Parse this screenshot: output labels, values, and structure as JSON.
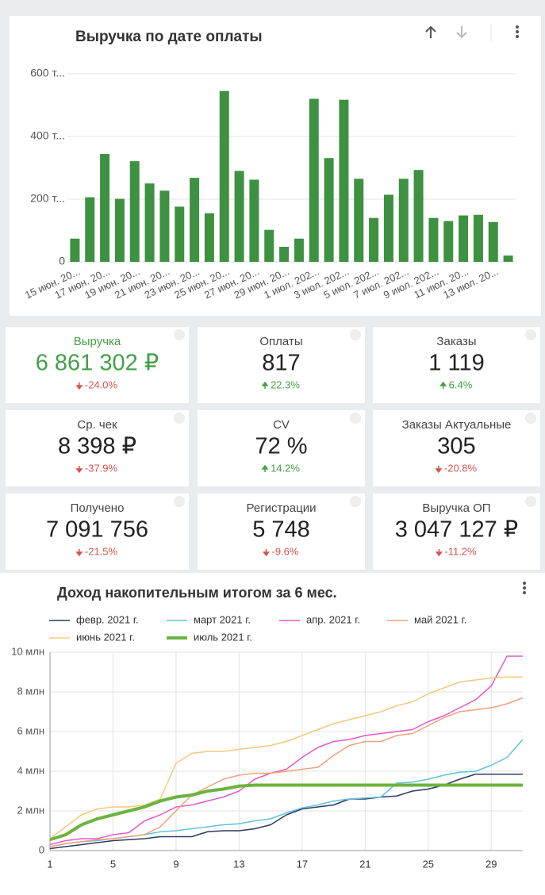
{
  "chart_data": [
    {
      "type": "bar",
      "title": "Выручка по дате оплаты",
      "color": "#3d9140",
      "grid": true,
      "categories": [
        "15 июн. 20...",
        null,
        "17 июн. 20...",
        null,
        "19 июн. 20...",
        null,
        "21 июн. 20...",
        null,
        "23 июн. 20...",
        null,
        "25 июн. 20...",
        null,
        "27 июн. 20...",
        null,
        "29 июн. 20...",
        null,
        "1 июл. 202...",
        null,
        "3 июл. 202...",
        null,
        "5 июл. 202...",
        null,
        "7 июл. 202...",
        null,
        "9 июл. 202...",
        null,
        "11 июл. 20...",
        null,
        "13 июл. 20...",
        null
      ],
      "values": [
        74,
        206,
        344,
        201,
        321,
        250,
        227,
        176,
        268,
        155,
        545,
        290,
        262,
        102,
        48,
        74,
        520,
        331,
        517,
        265,
        140,
        214,
        265,
        293,
        140,
        130,
        148,
        150,
        127,
        20
      ],
      "ylim": [
        0,
        620
      ],
      "yticks": [
        0,
        {
          "value": 200,
          "label": "200 т..."
        },
        {
          "value": 400,
          "label": "400 т..."
        },
        {
          "value": 600,
          "label": "600 т..."
        }
      ]
    },
    {
      "type": "line",
      "title": "Доход накопительным итогом за 6 мес.",
      "grid": true,
      "legend": "top",
      "x": [
        1,
        2,
        3,
        4,
        5,
        6,
        7,
        8,
        9,
        10,
        11,
        12,
        13,
        14,
        15,
        16,
        17,
        18,
        19,
        20,
        21,
        22,
        23,
        24,
        25,
        26,
        27,
        28,
        29,
        30,
        31
      ],
      "xlim": [
        1,
        31
      ],
      "xticks": [
        1,
        5,
        9,
        13,
        17,
        21,
        25,
        29
      ],
      "ylim": [
        0,
        10
      ],
      "yticks": [
        0,
        {
          "value": 2,
          "label": "2 млн"
        },
        {
          "value": 4,
          "label": "4 млн"
        },
        {
          "value": 6,
          "label": "6 млн"
        },
        {
          "value": 8,
          "label": "8 млн"
        },
        {
          "value": 10,
          "label": "10 млн"
        }
      ],
      "series": [
        {
          "name": "февр. 2021 г.",
          "color": "#2d3a63",
          "line_width": 1.5,
          "values": [
            0.1,
            0.2,
            0.3,
            0.4,
            0.5,
            0.55,
            0.6,
            0.7,
            0.7,
            0.7,
            0.95,
            1.0,
            1.0,
            1.1,
            1.3,
            1.8,
            2.1,
            2.2,
            2.3,
            2.6,
            2.6,
            2.7,
            2.75,
            3.0,
            3.1,
            3.3,
            3.6,
            3.85,
            3.85,
            3.85,
            3.85
          ]
        },
        {
          "name": "март 2021 г.",
          "color": "#5fc3dc",
          "line_width": 1.5,
          "values": [
            0.2,
            0.35,
            0.45,
            0.5,
            0.6,
            0.7,
            0.8,
            0.95,
            1.0,
            1.1,
            1.2,
            1.3,
            1.35,
            1.5,
            1.6,
            1.9,
            2.15,
            2.3,
            2.5,
            2.6,
            2.65,
            2.7,
            3.4,
            3.45,
            3.6,
            3.8,
            3.95,
            4.0,
            4.3,
            4.7,
            5.6
          ]
        },
        {
          "name": "апр. 2021 г.",
          "color": "#e25bcb",
          "line_width": 1.5,
          "values": [
            0.3,
            0.5,
            0.6,
            0.6,
            0.8,
            0.9,
            1.5,
            1.8,
            2.2,
            2.3,
            2.5,
            2.7,
            3.0,
            3.6,
            3.9,
            4.1,
            4.7,
            5.2,
            5.5,
            5.6,
            5.8,
            5.9,
            6.0,
            6.1,
            6.5,
            6.8,
            7.2,
            7.6,
            8.3,
            9.8,
            9.8
          ]
        },
        {
          "name": "май 2021 г.",
          "color": "#f0a27a",
          "line_width": 1.5,
          "values": [
            0.2,
            0.35,
            0.45,
            0.55,
            0.6,
            0.7,
            0.8,
            1.2,
            2.0,
            2.8,
            3.2,
            3.6,
            3.8,
            3.9,
            3.9,
            4.0,
            4.1,
            4.2,
            4.8,
            5.3,
            5.5,
            5.5,
            5.8,
            5.9,
            6.3,
            6.7,
            7.0,
            7.1,
            7.2,
            7.4,
            7.7
          ]
        },
        {
          "name": "июнь 2021 г.",
          "color": "#f5c87e",
          "line_width": 1.5,
          "values": [
            0.6,
            1.2,
            1.8,
            2.1,
            2.2,
            2.2,
            2.3,
            2.6,
            4.4,
            4.9,
            5.0,
            5.0,
            5.1,
            5.2,
            5.3,
            5.5,
            5.8,
            6.1,
            6.4,
            6.6,
            6.8,
            7.0,
            7.3,
            7.5,
            7.9,
            8.2,
            8.5,
            8.6,
            8.7,
            8.75,
            8.75
          ]
        },
        {
          "name": "июль 2021 г.",
          "color": "#6cb33f",
          "line_width": 4,
          "values": [
            0.55,
            0.8,
            1.3,
            1.6,
            1.8,
            2.0,
            2.2,
            2.5,
            2.7,
            2.8,
            3.0,
            3.1,
            3.25,
            3.3,
            3.3,
            3.3,
            3.3,
            3.3,
            3.3,
            3.3,
            3.3,
            3.3,
            3.3,
            3.3,
            3.3,
            3.3,
            3.3,
            3.3,
            3.3,
            3.3,
            3.3
          ]
        }
      ]
    }
  ],
  "kpis": [
    {
      "title": "Выручка",
      "value": "6 861 302 ₽",
      "change": "-24.0%",
      "trend": "down",
      "highlight": true
    },
    {
      "title": "Оплаты",
      "value": "817",
      "change": "22.3%",
      "trend": "up"
    },
    {
      "title": "Заказы",
      "value": "1 119",
      "change": "6.4%",
      "trend": "up"
    },
    {
      "title": "Ср. чек",
      "value": "8 398 ₽",
      "change": "-37.9%",
      "trend": "down"
    },
    {
      "title": "CV",
      "value": "72 %",
      "change": "14.2%",
      "trend": "up"
    },
    {
      "title": "Заказы Актуальные",
      "value": "305",
      "change": "-20.8%",
      "trend": "down"
    },
    {
      "title": "Получено",
      "value": "7 091 756",
      "change": "-21.5%",
      "trend": "down"
    },
    {
      "title": "Регистрации",
      "value": "5 748",
      "change": "-9.6%",
      "trend": "down"
    },
    {
      "title": "Выручка ОП",
      "value": "3 047 127 ₽",
      "change": "-11.2%",
      "trend": "down"
    }
  ]
}
